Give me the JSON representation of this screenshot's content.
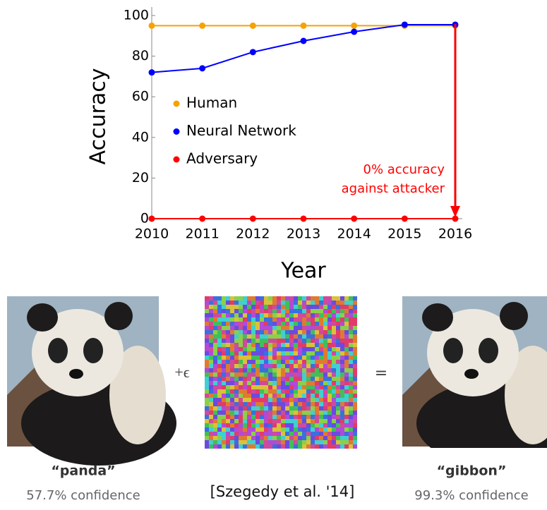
{
  "chart_data": {
    "type": "line",
    "x": [
      2010,
      2011,
      2012,
      2013,
      2014,
      2015,
      2016
    ],
    "xlim": [
      2010,
      2016
    ],
    "xticks": [
      2010,
      2011,
      2012,
      2013,
      2014,
      2015,
      2016
    ],
    "ylim": [
      0,
      100
    ],
    "yticks": [
      0,
      20,
      40,
      60,
      80,
      100
    ],
    "xlabel": "Year",
    "ylabel": "Accuracy",
    "legend": "left",
    "series": [
      {
        "name": "Human",
        "color": "#f5a300",
        "values": [
          95,
          95,
          95,
          95,
          95,
          95,
          95
        ]
      },
      {
        "name": "Neural Network",
        "color": "#0000ff",
        "values": [
          72,
          74,
          82,
          87.5,
          92,
          95.5,
          95.5
        ]
      },
      {
        "name": "Adversary",
        "color": "#ff0000",
        "values": [
          0,
          0,
          0,
          0,
          0,
          0,
          0
        ]
      }
    ],
    "annotation": [
      "0% accuracy",
      "against attacker"
    ]
  },
  "figure": {
    "left_label": "“panda”",
    "left_confidence": "57.7% confidence",
    "plus": "+ϵ",
    "equals": "=",
    "citation": "[Szegedy et al. '14]",
    "right_label": "“gibbon”",
    "right_confidence": "99.3% confidence"
  }
}
